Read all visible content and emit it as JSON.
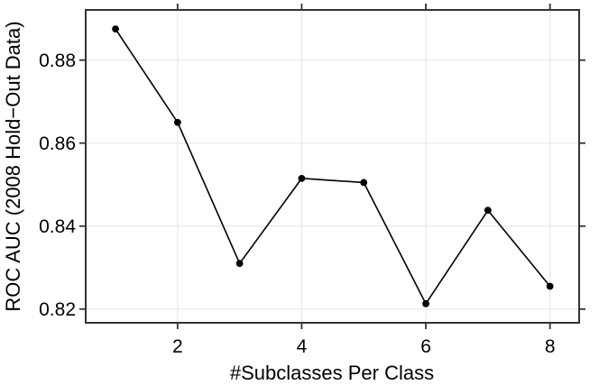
{
  "chart_data": {
    "type": "line",
    "title": "",
    "xlabel": "#Subclasses Per Class",
    "ylabel": "ROC AUC (2008 Hold−Out Data)",
    "x": [
      1,
      2,
      3,
      4,
      5,
      6,
      7,
      8
    ],
    "y": [
      0.8875,
      0.865,
      0.831,
      0.8515,
      0.8505,
      0.8213,
      0.8438,
      0.8255
    ],
    "xticks": [
      2,
      4,
      6,
      8
    ],
    "yticks": [
      0.82,
      0.84,
      0.86,
      0.88
    ],
    "ytick_decimals": 2,
    "xlim": [
      0.52,
      8.47
    ],
    "ylim": [
      0.8167,
      0.8921
    ],
    "grid": true,
    "legend": "none",
    "marker": "filled-circle",
    "ticks_on_all_sides": true,
    "colors": {
      "line": "#000000",
      "marker": "#000000",
      "frame": "#333333",
      "grid": "#e8e8e8",
      "text": "#000000"
    }
  }
}
